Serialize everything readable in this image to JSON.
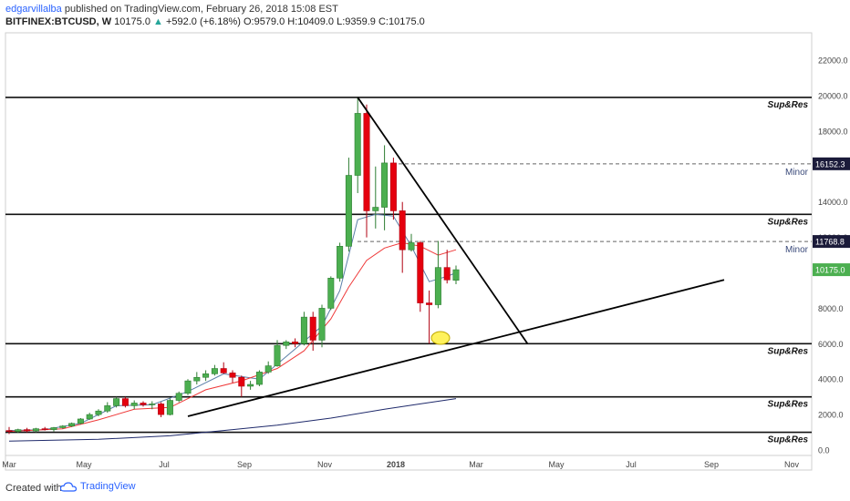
{
  "header": {
    "author": "edgarvillalba",
    "published": "published on TradingView.com, February 26, 2018 15:08 EST",
    "symbol": "BITFINEX:BTCUSD, W",
    "price": "10175.0",
    "change": "+592.0 (+6.18%)",
    "ohlc": "O:9579.0 H:10409.0 L:9359.9 C:10175.0"
  },
  "footer": {
    "created_with": "Created with",
    "brand": "TradingView"
  },
  "colors": {
    "up": "#4caf50",
    "down": "#e5000e",
    "ema_short": "#5b7fa8",
    "ema_long": "#ef3a3a",
    "sma_slow": "#1f2a6b",
    "label_dark": "#1b1b3a"
  },
  "chart_data": {
    "type": "candlestick",
    "x_ticks": [
      "Mar",
      "May",
      "Jul",
      "Sep",
      "Nov",
      "2018",
      "Mar",
      "May",
      "Jul",
      "Sep",
      "Nov"
    ],
    "y_ticks": [
      "22000.0",
      "20000.0",
      "18000.0",
      "16000.0",
      "14000.0",
      "12000.0",
      "8000.0",
      "6000.0",
      "4000.0",
      "2000.0",
      "0.0"
    ],
    "ylim": [
      -600,
      24000
    ],
    "candles": [
      {
        "w": 0,
        "o": 1100,
        "h": 1300,
        "l": 900,
        "c": 1050
      },
      {
        "w": 1,
        "o": 1050,
        "h": 1200,
        "l": 950,
        "c": 1150
      },
      {
        "w": 2,
        "o": 1150,
        "h": 1250,
        "l": 1000,
        "c": 1080
      },
      {
        "w": 3,
        "o": 1080,
        "h": 1250,
        "l": 1000,
        "c": 1200
      },
      {
        "w": 4,
        "o": 1200,
        "h": 1300,
        "l": 1100,
        "c": 1150
      },
      {
        "w": 5,
        "o": 1150,
        "h": 1300,
        "l": 1050,
        "c": 1260
      },
      {
        "w": 6,
        "o": 1260,
        "h": 1400,
        "l": 1200,
        "c": 1350
      },
      {
        "w": 7,
        "o": 1350,
        "h": 1550,
        "l": 1300,
        "c": 1500
      },
      {
        "w": 8,
        "o": 1500,
        "h": 1800,
        "l": 1450,
        "c": 1750
      },
      {
        "w": 9,
        "o": 1750,
        "h": 2100,
        "l": 1700,
        "c": 2000
      },
      {
        "w": 10,
        "o": 2000,
        "h": 2300,
        "l": 1900,
        "c": 2200
      },
      {
        "w": 11,
        "o": 2200,
        "h": 2700,
        "l": 2100,
        "c": 2500
      },
      {
        "w": 12,
        "o": 2500,
        "h": 3000,
        "l": 2400,
        "c": 2900
      },
      {
        "w": 13,
        "o": 2900,
        "h": 3000,
        "l": 2400,
        "c": 2500
      },
      {
        "w": 14,
        "o": 2500,
        "h": 2800,
        "l": 2300,
        "c": 2650
      },
      {
        "w": 15,
        "o": 2650,
        "h": 2750,
        "l": 2450,
        "c": 2550
      },
      {
        "w": 16,
        "o": 2550,
        "h": 2750,
        "l": 2300,
        "c": 2600
      },
      {
        "w": 17,
        "o": 2600,
        "h": 2700,
        "l": 1850,
        "c": 2000
      },
      {
        "w": 18,
        "o": 2000,
        "h": 2900,
        "l": 1950,
        "c": 2800
      },
      {
        "w": 19,
        "o": 2800,
        "h": 3300,
        "l": 2700,
        "c": 3200
      },
      {
        "w": 20,
        "o": 3200,
        "h": 4000,
        "l": 3100,
        "c": 3900
      },
      {
        "w": 21,
        "o": 3900,
        "h": 4400,
        "l": 3700,
        "c": 4100
      },
      {
        "w": 22,
        "o": 4100,
        "h": 4500,
        "l": 3900,
        "c": 4300
      },
      {
        "w": 23,
        "o": 4300,
        "h": 4800,
        "l": 4200,
        "c": 4600
      },
      {
        "w": 24,
        "o": 4600,
        "h": 4950,
        "l": 4300,
        "c": 4350
      },
      {
        "w": 25,
        "o": 4350,
        "h": 4500,
        "l": 3800,
        "c": 4100
      },
      {
        "w": 26,
        "o": 4100,
        "h": 4200,
        "l": 3000,
        "c": 3600
      },
      {
        "w": 27,
        "o": 3600,
        "h": 3900,
        "l": 3400,
        "c": 3700
      },
      {
        "w": 28,
        "o": 3700,
        "h": 4500,
        "l": 3600,
        "c": 4400
      },
      {
        "w": 29,
        "o": 4400,
        "h": 5000,
        "l": 4300,
        "c": 4750
      },
      {
        "w": 30,
        "o": 4750,
        "h": 6200,
        "l": 4700,
        "c": 5900
      },
      {
        "w": 31,
        "o": 5900,
        "h": 6200,
        "l": 5700,
        "c": 6100
      },
      {
        "w": 32,
        "o": 6100,
        "h": 6300,
        "l": 5800,
        "c": 6000
      },
      {
        "w": 33,
        "o": 6000,
        "h": 7800,
        "l": 5900,
        "c": 7500
      },
      {
        "w": 34,
        "o": 7500,
        "h": 7800,
        "l": 5600,
        "c": 6200
      },
      {
        "w": 35,
        "o": 6200,
        "h": 8200,
        "l": 5800,
        "c": 8000
      },
      {
        "w": 36,
        "o": 8000,
        "h": 9800,
        "l": 7900,
        "c": 9700
      },
      {
        "w": 37,
        "o": 9700,
        "h": 11700,
        "l": 9500,
        "c": 11500
      },
      {
        "w": 38,
        "o": 11500,
        "h": 16500,
        "l": 11200,
        "c": 15500
      },
      {
        "w": 39,
        "o": 15500,
        "h": 19900,
        "l": 14500,
        "c": 19000
      },
      {
        "w": 40,
        "o": 19000,
        "h": 19500,
        "l": 12000,
        "c": 13500
      },
      {
        "w": 41,
        "o": 13500,
        "h": 16000,
        "l": 12500,
        "c": 13700
      },
      {
        "w": 42,
        "o": 13700,
        "h": 17200,
        "l": 12400,
        "c": 16200
      },
      {
        "w": 43,
        "o": 16200,
        "h": 16500,
        "l": 13000,
        "c": 13500
      },
      {
        "w": 44,
        "o": 13500,
        "h": 14000,
        "l": 10000,
        "c": 11300
      },
      {
        "w": 45,
        "o": 11300,
        "h": 12200,
        "l": 11200,
        "c": 11700
      },
      {
        "w": 46,
        "o": 11700,
        "h": 11800,
        "l": 7800,
        "c": 8300
      },
      {
        "w": 47,
        "o": 8300,
        "h": 9000,
        "l": 6000,
        "c": 8200
      },
      {
        "w": 48,
        "o": 8200,
        "h": 11800,
        "l": 8000,
        "c": 10300
      },
      {
        "w": 49,
        "o": 10300,
        "h": 11300,
        "l": 9400,
        "c": 9600
      },
      {
        "w": 50,
        "o": 9579,
        "h": 10409,
        "l": 9360,
        "c": 10175
      }
    ],
    "moving_averages": [
      {
        "points": [
          [
            0,
            1100
          ],
          [
            4,
            1150
          ],
          [
            8,
            1500
          ],
          [
            12,
            2500
          ],
          [
            16,
            2550
          ],
          [
            20,
            3300
          ],
          [
            24,
            4300
          ],
          [
            28,
            4000
          ],
          [
            32,
            5700
          ],
          [
            35,
            7000
          ],
          [
            37,
            9000
          ],
          [
            39,
            13000
          ],
          [
            41,
            13300
          ],
          [
            43,
            13200
          ],
          [
            45,
            11500
          ],
          [
            47,
            9500
          ],
          [
            49,
            9800
          ],
          [
            50,
            10000
          ]
        ]
      },
      {
        "points": [
          [
            0,
            1050
          ],
          [
            6,
            1200
          ],
          [
            10,
            1700
          ],
          [
            14,
            2300
          ],
          [
            18,
            2400
          ],
          [
            22,
            3400
          ],
          [
            26,
            3900
          ],
          [
            30,
            4600
          ],
          [
            33,
            5600
          ],
          [
            36,
            7400
          ],
          [
            38,
            9200
          ],
          [
            40,
            10700
          ],
          [
            42,
            11400
          ],
          [
            44,
            11700
          ],
          [
            46,
            11500
          ],
          [
            48,
            11000
          ],
          [
            50,
            11300
          ]
        ]
      },
      {
        "points": [
          [
            0,
            500
          ],
          [
            10,
            600
          ],
          [
            18,
            800
          ],
          [
            24,
            1100
          ],
          [
            30,
            1400
          ],
          [
            36,
            1800
          ],
          [
            42,
            2300
          ],
          [
            46,
            2600
          ],
          [
            50,
            2900
          ]
        ]
      }
    ],
    "horizontal_levels": [
      {
        "value": 19900,
        "label": "Sup&Res",
        "style": "solid"
      },
      {
        "value": 16152.3,
        "label": "Minor",
        "style": "dashed",
        "price_label": "16152.3"
      },
      {
        "value": 13300,
        "label": "Sup&Res",
        "style": "solid"
      },
      {
        "value": 11768.8,
        "label": "Minor",
        "style": "dashed",
        "price_label": "11768.8"
      },
      {
        "value": 6000,
        "label": "Sup&Res",
        "style": "solid"
      },
      {
        "value": 3000,
        "label": "Sup&Res",
        "style": "solid"
      },
      {
        "value": 1000,
        "label": "Sup&Res",
        "style": "solid"
      }
    ],
    "trendlines": [
      {
        "from": [
          39,
          19900
        ],
        "to": [
          58,
          6000
        ]
      },
      {
        "from": [
          20,
          1900
        ],
        "to": [
          80,
          9600
        ]
      }
    ],
    "current_price_label": "10175.0"
  }
}
